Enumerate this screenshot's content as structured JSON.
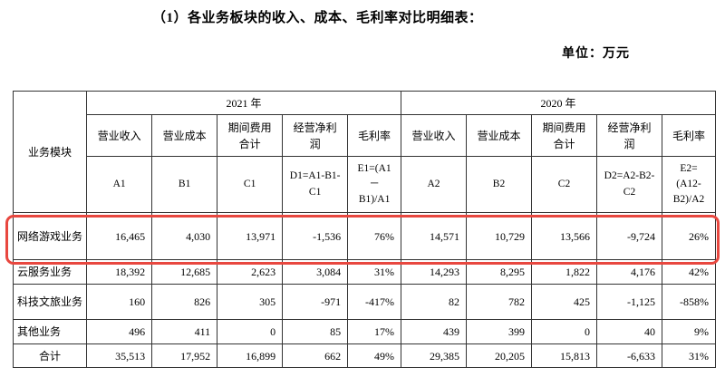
{
  "page": {
    "title": "（1）各业务板块的收入、成本、毛利率对比明细表：",
    "unit_label": "单位：万元"
  },
  "table": {
    "corner_header": "业务模块",
    "year_groups": [
      "2021 年",
      "2020 年"
    ],
    "columns_2021": [
      {
        "name": "营业收入",
        "formula": "A1"
      },
      {
        "name": "营业成本",
        "formula": "B1"
      },
      {
        "name": "期间费用合计",
        "formula": "C1"
      },
      {
        "name": "经营净利润",
        "formula": "D1=A1-B1-C1"
      },
      {
        "name": "毛利率",
        "formula": "E1=(A1－B1)/A1"
      }
    ],
    "columns_2020": [
      {
        "name": "营业收入",
        "formula": "A2"
      },
      {
        "name": "营业成本",
        "formula": "B2"
      },
      {
        "name": "期间费用合计",
        "formula": "C2"
      },
      {
        "name": "经营净利润",
        "formula": "D2=A2-B2-C2"
      },
      {
        "name": "毛利率",
        "formula": "E2=(A12-B2)/A2"
      }
    ],
    "rows": [
      {
        "label": "网络游戏业务",
        "highlight": true,
        "is_total": false,
        "values": [
          "16,465",
          "4,030",
          "13,971",
          "-1,536",
          "76%",
          "14,571",
          "10,729",
          "13,566",
          "-9,724",
          "26%"
        ]
      },
      {
        "label": "云服务业务",
        "highlight": false,
        "is_total": false,
        "values": [
          "18,392",
          "12,685",
          "2,623",
          "3,084",
          "31%",
          "14,293",
          "8,295",
          "1,822",
          "4,176",
          "42%"
        ]
      },
      {
        "label": "科技文旅业务",
        "highlight": false,
        "is_total": false,
        "values": [
          "160",
          "826",
          "305",
          "-971",
          "-417%",
          "82",
          "782",
          "425",
          "-1,125",
          "-858%"
        ]
      },
      {
        "label": "其他业务",
        "highlight": false,
        "is_total": false,
        "values": [
          "496",
          "411",
          "0",
          "85",
          "17%",
          "439",
          "399",
          "0",
          "40",
          "9%"
        ]
      },
      {
        "label": "合计",
        "highlight": false,
        "is_total": true,
        "values": [
          "35,513",
          "17,952",
          "16,899",
          "662",
          "49%",
          "29,385",
          "20,205",
          "15,813",
          "-6,633",
          "31%"
        ]
      }
    ],
    "highlight_color": "#e8473f"
  }
}
